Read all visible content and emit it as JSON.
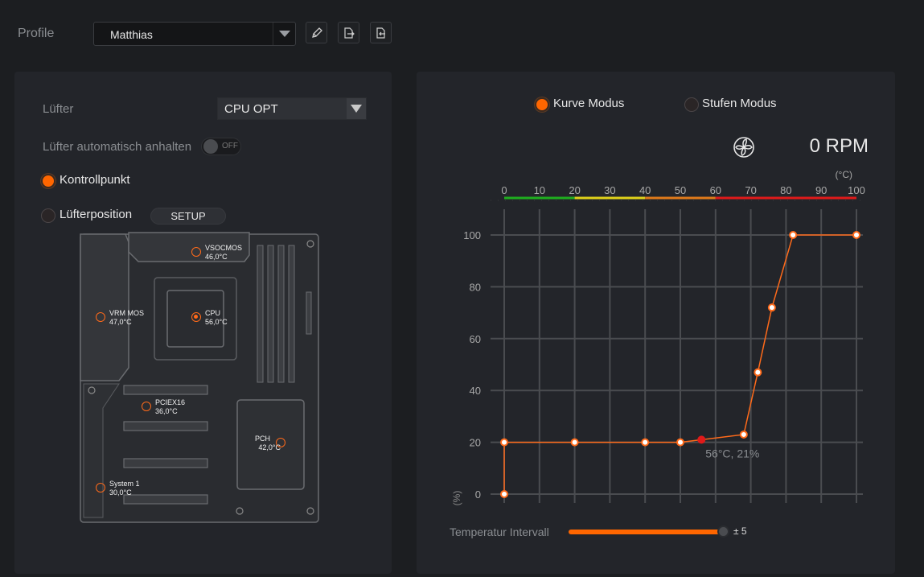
{
  "header": {
    "profile_label": "Profile",
    "profile_value": "Matthias",
    "icons": [
      "edit-icon",
      "export-icon",
      "import-icon"
    ]
  },
  "left": {
    "fan_label": "Lüfter",
    "fan_value": "CPU OPT",
    "auto_stop_label": "Lüfter automatisch anhalten",
    "auto_stop_state": "OFF",
    "control_point_label": "Kontrollpunkt",
    "fan_position_label": "Lüfterposition",
    "setup_label": "SETUP",
    "sensors": [
      {
        "name": "VSOCMOS",
        "temp": "46,0°C"
      },
      {
        "name": "VRM MOS",
        "temp": "47,0°C"
      },
      {
        "name": "CPU",
        "temp": "56,0°C"
      },
      {
        "name": "PCIEX16",
        "temp": "36,0°C"
      },
      {
        "name": "PCH",
        "temp": "42,0°C"
      },
      {
        "name": "System 1",
        "temp": "30,0°C"
      }
    ]
  },
  "right": {
    "curve_mode_label": "Kurve Modus",
    "step_mode_label": "Stufen Modus",
    "rpm": "0 RPM",
    "interval_label": "Temperatur Intervall",
    "interval_value": "± 5",
    "interval_fraction": 1.0
  },
  "chart_data": {
    "type": "line",
    "xlabel": "(°C)",
    "ylabel": "(%)",
    "xlim": [
      0,
      100
    ],
    "ylim": [
      0,
      100
    ],
    "x_ticks": [
      0,
      10,
      20,
      30,
      40,
      50,
      60,
      70,
      80,
      90,
      100
    ],
    "y_ticks": [
      0,
      20,
      40,
      60,
      80,
      100
    ],
    "points": [
      {
        "x": 0,
        "y": 0
      },
      {
        "x": 0,
        "y": 20
      },
      {
        "x": 20,
        "y": 20
      },
      {
        "x": 40,
        "y": 20
      },
      {
        "x": 50,
        "y": 20
      },
      {
        "x": 68,
        "y": 23
      },
      {
        "x": 72,
        "y": 47
      },
      {
        "x": 76,
        "y": 72
      },
      {
        "x": 82,
        "y": 100
      },
      {
        "x": 100,
        "y": 100
      }
    ],
    "current": {
      "x": 56,
      "y": 21,
      "label": "56°C, 21%"
    },
    "temp_scale_colors": [
      {
        "from": 0,
        "to": 20,
        "color": "#1fae1f"
      },
      {
        "from": 20,
        "to": 40,
        "color": "#e0d21a"
      },
      {
        "from": 40,
        "to": 60,
        "color": "#e07a1a"
      },
      {
        "from": 60,
        "to": 100,
        "color": "#e01a1a"
      }
    ],
    "grid": true
  }
}
